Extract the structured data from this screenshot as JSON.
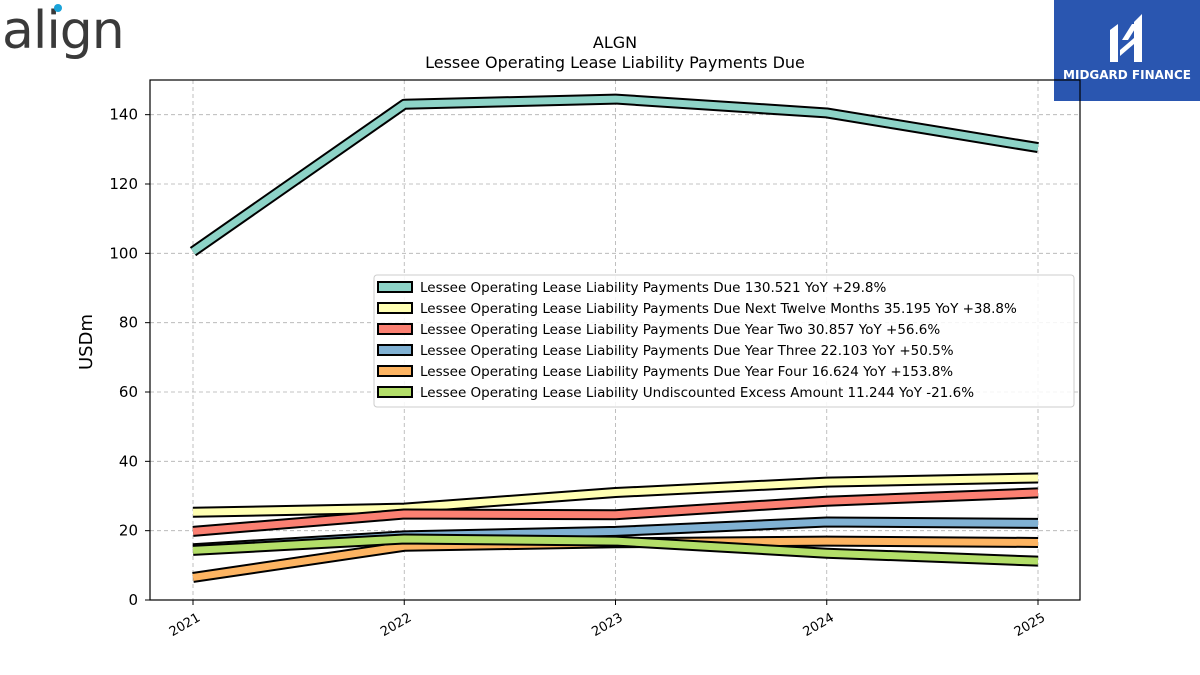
{
  "header": {
    "company_logo_text": "align",
    "brand_name": "MIDGARD FINANCE"
  },
  "chart_data": {
    "type": "line",
    "title": "ALGN",
    "subtitle": "Lessee Operating Lease Liability Payments Due",
    "xlabel": "",
    "ylabel": "USDm",
    "categories": [
      "2021",
      "2022",
      "2023",
      "2024",
      "2025"
    ],
    "ylim": [
      0,
      150
    ],
    "yticks": [
      0,
      20,
      40,
      60,
      80,
      100,
      120,
      140
    ],
    "grid": true,
    "legend_position": "center-right",
    "series": [
      {
        "name": "Lessee Operating Lease Liability Payments Due",
        "legend_label": "Lessee Operating Lease Liability Payments Due  130.521 YoY +29.8%",
        "color": "#8dd3c7",
        "values": [
          100.5,
          143.0,
          144.5,
          140.5,
          130.5
        ]
      },
      {
        "name": "Lessee Operating Lease Liability Payments Due Next Twelve Months",
        "legend_label": "Lessee Operating Lease Liability Payments Due Next Twelve Months  35.195 YoY +38.8%",
        "color": "#ffffb3",
        "values": [
          25.3,
          26.5,
          31.0,
          34.0,
          35.2
        ]
      },
      {
        "name": "Lessee Operating Lease Liability Payments Due Year Two",
        "legend_label": "Lessee Operating Lease Liability Payments Due Year Two  30.857 YoY +56.6%",
        "color": "#fb8072",
        "values": [
          19.8,
          24.8,
          24.6,
          28.5,
          30.9
        ]
      },
      {
        "name": "Lessee Operating Lease Liability Payments Due Year Three",
        "legend_label": "Lessee Operating Lease Liability Payments Due Year Three  22.103 YoY +50.5%",
        "color": "#80b1d3",
        "values": [
          14.8,
          18.5,
          19.8,
          22.5,
          22.1
        ]
      },
      {
        "name": "Lessee Operating Lease Liability Payments Due Year Four",
        "legend_label": "Lessee Operating Lease Liability Payments Due Year Four  16.624 YoY +153.8%",
        "color": "#fdb462",
        "values": [
          6.5,
          15.5,
          16.5,
          17.0,
          16.6
        ]
      },
      {
        "name": "Lessee Operating Lease Liability Undiscounted Excess Amount",
        "legend_label": "Lessee Operating Lease Liability Undiscounted Excess Amount  11.244 YoY -21.6%",
        "color": "#b3de69",
        "values": [
          14.3,
          17.6,
          17.0,
          13.5,
          11.2
        ]
      }
    ]
  }
}
